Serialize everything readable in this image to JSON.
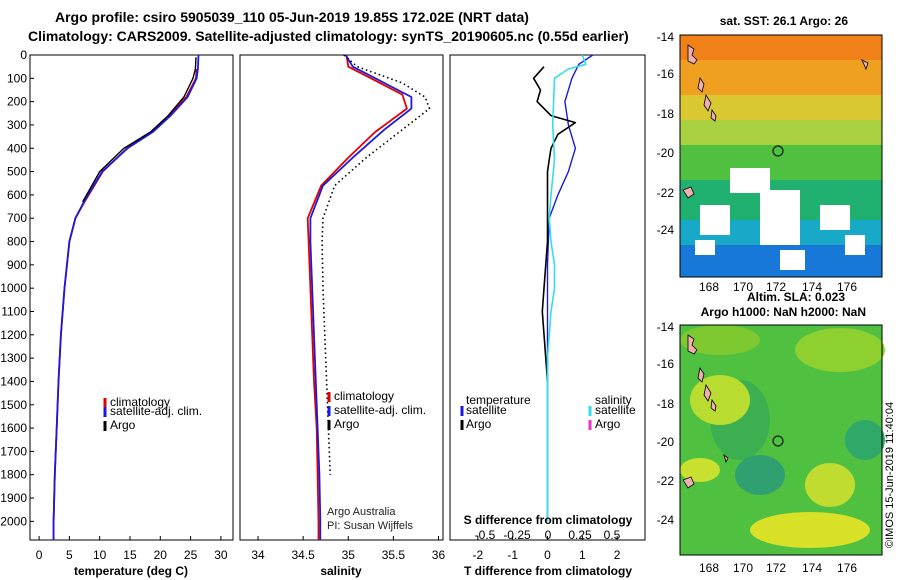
{
  "header": {
    "line1": "Argo profile: csiro 5905039_110 05-Jun-2019 19.85S 172.02E (NRT data)",
    "line2": "Climatology: CARS2009. Satellite-adjusted climatology: synTS_20190605.nc (0.55d earlier)"
  },
  "colors": {
    "climatology": "#e00000",
    "satellite": "#1a1adf",
    "argo": "#000000",
    "sat_salinity": "#33ddee",
    "argo_salinity": "#ee33cc"
  },
  "depth_axis": {
    "ticks": [
      0,
      100,
      200,
      300,
      400,
      500,
      600,
      700,
      800,
      900,
      1000,
      1100,
      1200,
      1300,
      1400,
      1500,
      1600,
      1700,
      1800,
      1900,
      2000
    ],
    "max": 2080
  },
  "chart_data": [
    {
      "type": "line",
      "name": "temperature",
      "xlabel": "temperature (deg C)",
      "xlim": [
        -1.5,
        32
      ],
      "xticks": [
        0,
        5,
        10,
        15,
        20,
        25,
        30
      ],
      "series": [
        {
          "name": "climatology",
          "points": [
            [
              26,
              60
            ],
            [
              25.9,
              100
            ],
            [
              24.3,
              180
            ],
            [
              21.5,
              260
            ],
            [
              18.5,
              330
            ],
            [
              14.5,
              400
            ],
            [
              10.5,
              500
            ],
            [
              7.5,
              630
            ],
            [
              6,
              700
            ],
            [
              5,
              800
            ],
            [
              4.2,
              1000
            ],
            [
              3.6,
              1200
            ],
            [
              3.2,
              1400
            ],
            [
              2.9,
              1600
            ],
            [
              2.6,
              1800
            ],
            [
              2.4,
              2000
            ],
            [
              2.4,
              2080
            ]
          ]
        },
        {
          "name": "satellite-adj. clim.",
          "points": [
            [
              26.3,
              0
            ],
            [
              26.2,
              60
            ],
            [
              26,
              100
            ],
            [
              24.5,
              180
            ],
            [
              21.7,
              260
            ],
            [
              18.8,
              330
            ],
            [
              14.6,
              400
            ],
            [
              10.4,
              500
            ],
            [
              7.4,
              630
            ],
            [
              6,
              700
            ],
            [
              5,
              800
            ],
            [
              4.2,
              1000
            ],
            [
              3.6,
              1200
            ],
            [
              3.2,
              1400
            ],
            [
              2.9,
              1600
            ],
            [
              2.6,
              1800
            ],
            [
              2.4,
              2000
            ],
            [
              2.4,
              2080
            ]
          ]
        },
        {
          "name": "Argo",
          "points": [
            [
              25.9,
              10
            ],
            [
              25.8,
              60
            ],
            [
              25.4,
              100
            ],
            [
              23.9,
              180
            ],
            [
              21.3,
              260
            ],
            [
              18.4,
              330
            ],
            [
              14,
              400
            ],
            [
              10,
              500
            ],
            [
              7.2,
              630
            ]
          ]
        }
      ],
      "legend": [
        "climatology",
        "satellite-adj. clim.",
        "Argo"
      ]
    },
    {
      "type": "line",
      "name": "salinity",
      "xlabel": "salinity",
      "xlim": [
        33.8,
        36.05
      ],
      "xticks": [
        34,
        34.5,
        35,
        35.5,
        36
      ],
      "series": [
        {
          "name": "climatology",
          "points": [
            [
              34.98,
              0
            ],
            [
              35.0,
              50
            ],
            [
              35.3,
              110
            ],
            [
              35.6,
              170
            ],
            [
              35.65,
              230
            ],
            [
              35.3,
              330
            ],
            [
              35.0,
              440
            ],
            [
              34.7,
              560
            ],
            [
              34.55,
              700
            ],
            [
              34.56,
              800
            ],
            [
              34.58,
              1000
            ],
            [
              34.6,
              1200
            ],
            [
              34.62,
              1400
            ],
            [
              34.65,
              1600
            ],
            [
              34.66,
              1800
            ],
            [
              34.67,
              2000
            ],
            [
              34.67,
              2080
            ]
          ]
        },
        {
          "name": "satellite-adj. clim.",
          "points": [
            [
              34.97,
              0
            ],
            [
              35.05,
              50
            ],
            [
              35.4,
              120
            ],
            [
              35.7,
              180
            ],
            [
              35.7,
              230
            ],
            [
              35.4,
              320
            ],
            [
              35.05,
              440
            ],
            [
              34.72,
              560
            ],
            [
              34.58,
              700
            ],
            [
              34.58,
              800
            ],
            [
              34.6,
              1000
            ],
            [
              34.62,
              1200
            ],
            [
              34.64,
              1400
            ],
            [
              34.66,
              1600
            ],
            [
              34.68,
              1800
            ],
            [
              34.69,
              2000
            ],
            [
              34.69,
              2080
            ]
          ]
        },
        {
          "name": "Argo",
          "points": [
            [
              34.95,
              0
            ],
            [
              35.1,
              50
            ],
            [
              35.6,
              120
            ],
            [
              35.85,
              180
            ],
            [
              35.9,
              230
            ],
            [
              35.6,
              320
            ],
            [
              35.2,
              440
            ],
            [
              34.85,
              560
            ],
            [
              34.72,
              700
            ],
            [
              34.71,
              800
            ],
            [
              34.72,
              1000
            ],
            [
              34.74,
              1200
            ],
            [
              34.76,
              1400
            ],
            [
              34.78,
              1600
            ],
            [
              34.8,
              1800
            ]
          ]
        }
      ],
      "legend": [
        "climatology",
        "satellite-adj. clim.",
        "Argo"
      ],
      "annotation": [
        "Argo Australia",
        "PI: Susan Wijffels"
      ]
    },
    {
      "type": "line",
      "name": "difference",
      "xlabel": "T difference from climatology",
      "xlim": [
        -2.8,
        2.8
      ],
      "xticks": [
        -2,
        -1,
        0,
        1,
        2
      ],
      "xlabel2": "S difference from climatology",
      "xticks2_labels": [
        "-0.5",
        "-0.25",
        "0",
        "0.25",
        "0.5"
      ],
      "series": [
        {
          "name": "T satellite",
          "points": [
            [
              1.3,
              0
            ],
            [
              0.9,
              40
            ],
            [
              0.7,
              100
            ],
            [
              0.5,
              200
            ],
            [
              0.6,
              300
            ],
            [
              0.8,
              400
            ],
            [
              0.6,
              500
            ],
            [
              0.3,
              600
            ],
            [
              0.05,
              700
            ],
            [
              0,
              900
            ],
            [
              0,
              2000
            ]
          ]
        },
        {
          "name": "T Argo",
          "points": [
            [
              -0.1,
              50
            ],
            [
              -0.4,
              100
            ],
            [
              -0.2,
              150
            ],
            [
              -0.3,
              200
            ],
            [
              0.1,
              260
            ],
            [
              0.8,
              290
            ],
            [
              0.3,
              340
            ],
            [
              0.1,
              400
            ],
            [
              0.05,
              450
            ],
            [
              0,
              500
            ],
            [
              0,
              800
            ],
            [
              -0.1,
              1000
            ],
            [
              -0.15,
              1100
            ],
            [
              0,
              1400
            ]
          ]
        },
        {
          "name": "S satellite",
          "points": [
            [
              1.0,
              0
            ],
            [
              1.1,
              40
            ],
            [
              0.6,
              60
            ],
            [
              0.2,
              100
            ],
            [
              0.15,
              300
            ],
            [
              0.2,
              450
            ],
            [
              0.1,
              600
            ],
            [
              0.05,
              700
            ],
            [
              0.1,
              800
            ],
            [
              0.2,
              900
            ],
            [
              0.2,
              1000
            ],
            [
              0.1,
              1100
            ],
            [
              0,
              1300
            ],
            [
              0,
              2000
            ]
          ]
        }
      ],
      "legend_left": {
        "title": "temperature",
        "items": [
          "satellite",
          "Argo"
        ]
      },
      "legend_right": {
        "title": "salinity",
        "items": [
          "satellite",
          "Argo"
        ]
      }
    }
  ],
  "maps": [
    {
      "title_lines": [
        "sat. SST: 26.1  Argo: 26"
      ],
      "yticks": [
        -14,
        -16,
        -18,
        -20,
        -22,
        -24
      ],
      "xticks": [
        168,
        170,
        172,
        174,
        176
      ]
    },
    {
      "title_lines": [
        "Altim. SLA: 0.023",
        "Argo h1000: NaN h2000: NaN"
      ],
      "yticks": [
        -14,
        -16,
        -18,
        -20,
        -22,
        -24
      ],
      "xticks": [
        168,
        170,
        172,
        174,
        176
      ]
    }
  ],
  "footer": {
    "credit": "©IMOS 15-Jun-2019 11:40:04"
  }
}
